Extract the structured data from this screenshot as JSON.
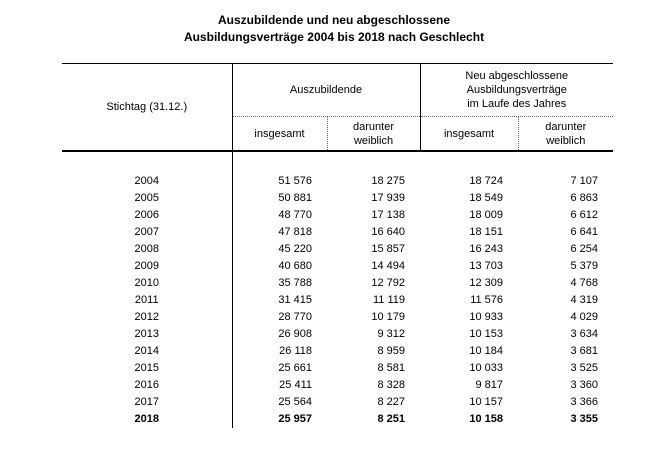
{
  "page": {
    "background": "#ffffff",
    "text_color": "#000000",
    "rule_color": "#000000",
    "dotted_rule_color": "#666666"
  },
  "title": {
    "line1": "Auszubildende und neu abgeschlossene",
    "line2": "Ausbildungsverträge 2004 bis 2018 nach Geschlecht"
  },
  "table": {
    "corner_header": "Stichtag (31.12.)",
    "group_headers": [
      {
        "label": "Auszubildende"
      },
      {
        "label": "Neu abgeschlossene\nAusbildungsverträge\nim Laufe des Jahres"
      }
    ],
    "sub_headers": [
      "insgesamt",
      "darunter\nweiblich",
      "insgesamt",
      "darunter\nweiblich"
    ],
    "rows": [
      {
        "year": "2004",
        "values": [
          "51 576",
          "18 275",
          "18 724",
          "7 107"
        ]
      },
      {
        "year": "2005",
        "values": [
          "50 881",
          "17 939",
          "18 549",
          "6 863"
        ]
      },
      {
        "year": "2006",
        "values": [
          "48 770",
          "17 138",
          "18 009",
          "6 612"
        ]
      },
      {
        "year": "2007",
        "values": [
          "47 818",
          "16 640",
          "18 151",
          "6 641"
        ]
      },
      {
        "year": "2008",
        "values": [
          "45 220",
          "15 857",
          "16 243",
          "6 254"
        ]
      },
      {
        "year": "2009",
        "values": [
          "40 680",
          "14 494",
          "13 703",
          "5 379"
        ]
      },
      {
        "year": "2010",
        "values": [
          "35 788",
          "12 792",
          "12 309",
          "4 768"
        ]
      },
      {
        "year": "2011",
        "values": [
          "31 415",
          "11 119",
          "11 576",
          "4 319"
        ]
      },
      {
        "year": "2012",
        "values": [
          "28 770",
          "10 179",
          "10 933",
          "4 029"
        ]
      },
      {
        "year": "2013",
        "values": [
          "26 908",
          "9 312",
          "10 153",
          "3 634"
        ]
      },
      {
        "year": "2014",
        "values": [
          "26 118",
          "8 959",
          "10 184",
          "3 681"
        ]
      },
      {
        "year": "2015",
        "values": [
          "25 661",
          "8 581",
          "10 033",
          "3 525"
        ]
      },
      {
        "year": "2016",
        "values": [
          "25 411",
          "8 328",
          "9 817",
          "3 360"
        ]
      },
      {
        "year": "2017",
        "values": [
          "25 564",
          "8 227",
          "10 157",
          "3 366"
        ]
      },
      {
        "year": "2018",
        "values": [
          "25 957",
          "8 251",
          "10 158",
          "3 355"
        ],
        "bold": true
      }
    ]
  }
}
